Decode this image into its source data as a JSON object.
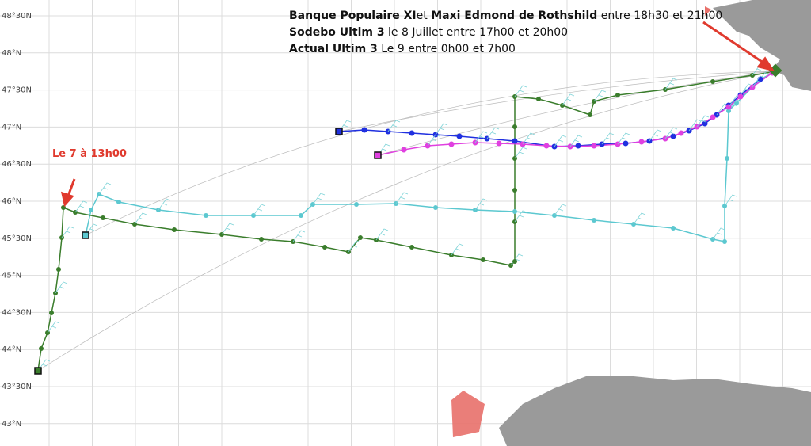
{
  "latitudes": [
    "48°30N",
    "48°N",
    "47°30N",
    "47°N",
    "46°30N",
    "46°N",
    "45°30N",
    "45°N",
    "44°30N",
    "44°N",
    "43°30N",
    "43°N"
  ],
  "legend": [
    [
      {
        "text": "Banque Populaire XI",
        "bold": true
      },
      {
        "text": "et ",
        "bold": false
      },
      {
        "text": "Maxi Edmond de Rothshild",
        "bold": true
      },
      {
        "text": " entre 18h30 et 21h00",
        "bold": false
      }
    ],
    [
      {
        "text": "Sodebo Ultim 3",
        "bold": true
      },
      {
        "text": " le 8 Juillet entre 17h00 et 20h00",
        "bold": false
      }
    ],
    [
      {
        "text": "Actual Ultim 3",
        "bold": true
      },
      {
        "text": " Le 9 entre 0h00 et 7h00",
        "bold": false
      }
    ]
  ],
  "note": "Le 7 à 13h00"
}
